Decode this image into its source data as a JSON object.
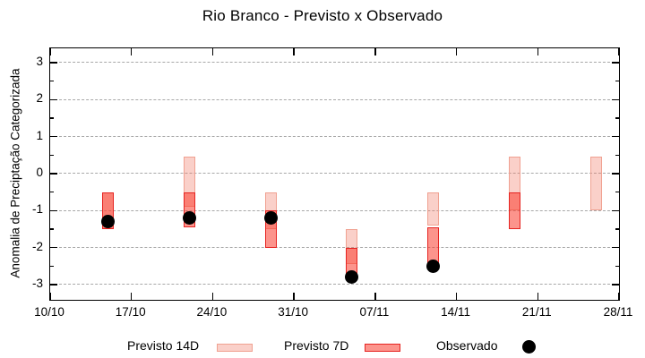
{
  "title": "Rio Branco - Previsto x Observado",
  "ylabel": "Anomalia de Preciptação Categorizada",
  "legend": {
    "items": [
      {
        "label": "Previsto 14D"
      },
      {
        "label": "Previsto 7D"
      },
      {
        "label": "Observado"
      }
    ]
  },
  "colors": {
    "fill_14d": "rgba(240,120,100,0.35)",
    "border_14d": "#f0a191",
    "fill_7d": "rgba(250,60,45,0.55)",
    "border_7d": "#e62421",
    "observed": "#000000",
    "grid": "#a8a8a8"
  },
  "chart_data": {
    "type": "bar",
    "subtype": "range-bars-with-scatter",
    "title": "Rio Branco - Previsto x Observado",
    "xlabel": "",
    "ylabel": "Anomalia de Preciptação Categorizada",
    "ylim": [
      -3.4,
      3.4
    ],
    "yticks": [
      3,
      2,
      1,
      0,
      -1,
      -2,
      -3
    ],
    "grid": "dashed-horizontal",
    "legend_position": "bottom",
    "x_axis_days_total": 49,
    "xtick_labels": [
      "10/10",
      "17/10",
      "24/10",
      "31/10",
      "07/11",
      "14/11",
      "21/11",
      "28/11"
    ],
    "xtick_days": [
      0,
      7,
      14,
      21,
      28,
      35,
      42,
      49
    ],
    "categories": [
      "15/10",
      "22/10",
      "29/10",
      "05/11",
      "12/11",
      "19/11",
      "26/11"
    ],
    "category_days": [
      5,
      12,
      19,
      26,
      33,
      40,
      47
    ],
    "series": [
      {
        "name": "Previsto 14D",
        "type": "range",
        "ranges": [
          {
            "low": -1.5,
            "high": -0.5
          },
          {
            "low": -0.9,
            "high": 0.45
          },
          {
            "low": -1.5,
            "high": -0.5
          },
          {
            "low": -2.45,
            "high": -1.5
          },
          {
            "low": -1.4,
            "high": -0.5
          },
          {
            "low": -1.0,
            "high": 0.45
          },
          {
            "low": -1.0,
            "high": 0.45
          }
        ]
      },
      {
        "name": "Previsto 7D",
        "type": "range",
        "ranges": [
          {
            "low": -1.5,
            "high": -0.5
          },
          {
            "low": -1.45,
            "high": -0.5
          },
          {
            "low": -2.0,
            "high": -1.0
          },
          {
            "low": -2.8,
            "high": -2.0
          },
          {
            "low": -2.45,
            "high": -1.45
          },
          {
            "low": -1.5,
            "high": -0.5
          },
          null
        ]
      },
      {
        "name": "Observado",
        "type": "scatter",
        "values": [
          -1.3,
          -1.2,
          -1.2,
          -2.8,
          -2.5,
          null,
          null
        ]
      }
    ]
  }
}
